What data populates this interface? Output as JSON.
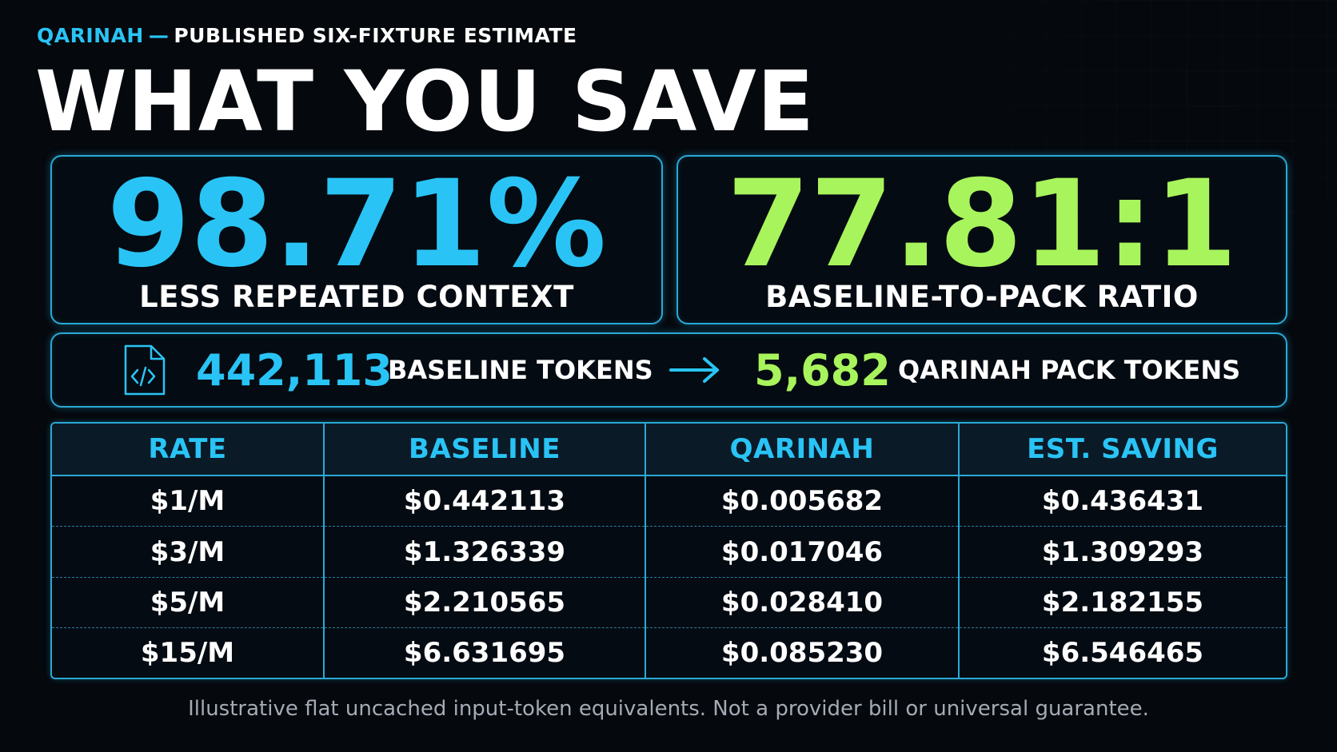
{
  "header": {
    "brand": "QARINAH",
    "separator": "—",
    "kicker": "PUBLISHED SIX-FIXTURE ESTIMATE",
    "headline": "WHAT YOU SAVE"
  },
  "stats": {
    "reduction": {
      "value": "98.71%",
      "label": "LESS REPEATED CONTEXT"
    },
    "ratio": {
      "value": "77.81:1",
      "label": "BASELINE-TO-PACK RATIO"
    }
  },
  "tokens": {
    "baseline_value": "442,113",
    "baseline_label": "BASELINE TOKENS",
    "pack_value": "5,682",
    "pack_label": "QARINAH PACK TOKENS"
  },
  "table": {
    "headers": [
      "RATE",
      "BASELINE",
      "QARINAH",
      "EST. SAVING"
    ],
    "rows": [
      [
        "$1/M",
        "$0.442113",
        "$0.005682",
        "$0.436431"
      ],
      [
        "$3/M",
        "$1.326339",
        "$0.017046",
        "$1.309293"
      ],
      [
        "$5/M",
        "$2.210565",
        "$0.028410",
        "$2.182155"
      ],
      [
        "$15/M",
        "$6.631695",
        "$0.085230",
        "$6.546465"
      ]
    ]
  },
  "footnote": "Illustrative flat uncached input-token equivalents. Not a provider bill or universal guarantee.",
  "icons": {
    "file": "code-file-icon",
    "arrow": "arrow-right-icon"
  },
  "colors": {
    "background": "#05080d",
    "accent_blue": "#29c4f5",
    "accent_green": "#a8f45c",
    "border": "#2aa9d6",
    "text": "#ffffff",
    "muted": "#a4abb4"
  }
}
